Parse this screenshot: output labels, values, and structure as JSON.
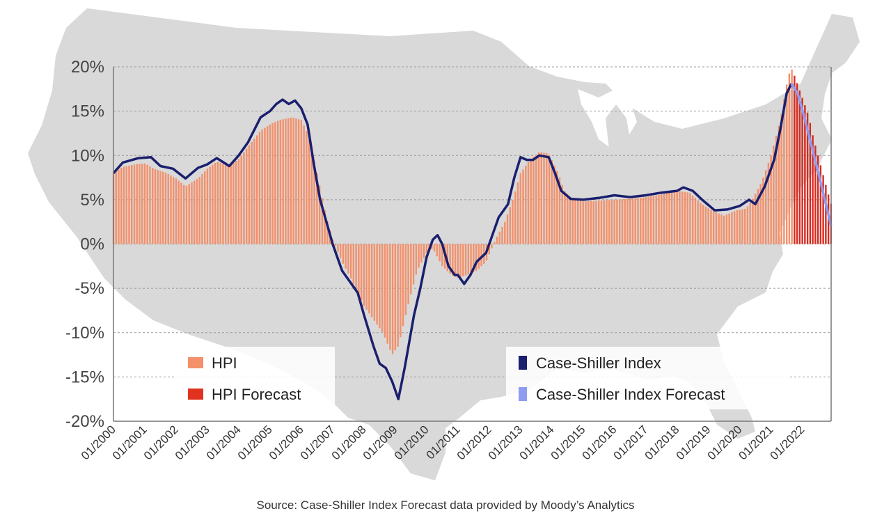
{
  "chart_data": {
    "type": "bar",
    "title": "",
    "xlabel": "",
    "ylabel": "",
    "ylim": [
      -20,
      20
    ],
    "y_ticks": [
      "-20%",
      "-15%",
      "-10%",
      "-5%",
      "0%",
      "5%",
      "10%",
      "15%",
      "20%"
    ],
    "y_tick_values": [
      -20,
      -15,
      -10,
      -5,
      0,
      5,
      10,
      15,
      20
    ],
    "x_tick_labels": [
      "01/2000",
      "01/2001",
      "01/2002",
      "01/2003",
      "01/2004",
      "01/2005",
      "01/2006",
      "01/2007",
      "01/2008",
      "01/2009",
      "01/2010",
      "01/2011",
      "01/2012",
      "01/2013",
      "01/2014",
      "01/2015",
      "01/2016",
      "01/2017",
      "01/2018",
      "01/2019",
      "01/2020",
      "01/2021",
      "01/2022"
    ],
    "x_range": [
      2000.0,
      2022.92
    ],
    "grid": true,
    "background": "us-map-silhouette",
    "source": "Source: Case-Shiller Index Forecast data provided by Moody’s Analytics",
    "colors": {
      "hpi": "#f4906a",
      "hpi_forecast": "#d62a1e",
      "case_shiller": "#1a1f6e",
      "case_shiller_forecast": "#8f9cf0",
      "map": "#d9d9d9",
      "grid": "#999999"
    },
    "legend_left": [
      {
        "name": "HPI",
        "color": "#f4906a"
      },
      {
        "name": "HPI Forecast",
        "color": "#e0321f"
      }
    ],
    "legend_right": [
      {
        "name": "Case-Shiller Index",
        "color": "#1a1f6e"
      },
      {
        "name": "Case-Shiller Index Forecast",
        "color": "#8f9cf0"
      }
    ],
    "series": [
      {
        "name": "HPI",
        "kind": "bar",
        "points": [
          [
            2000.0,
            8.0
          ],
          [
            2000.3,
            8.7
          ],
          [
            2000.7,
            9.0
          ],
          [
            2001.0,
            9.1
          ],
          [
            2001.3,
            8.5
          ],
          [
            2001.7,
            8.0
          ],
          [
            2002.0,
            7.4
          ],
          [
            2002.3,
            6.5
          ],
          [
            2002.7,
            7.4
          ],
          [
            2003.0,
            8.5
          ],
          [
            2003.3,
            9.3
          ],
          [
            2003.7,
            8.8
          ],
          [
            2004.0,
            9.6
          ],
          [
            2004.3,
            11.0
          ],
          [
            2004.7,
            12.8
          ],
          [
            2005.0,
            13.5
          ],
          [
            2005.3,
            14.0
          ],
          [
            2005.7,
            14.3
          ],
          [
            2006.0,
            14.0
          ],
          [
            2006.2,
            12.5
          ],
          [
            2006.5,
            8.0
          ],
          [
            2006.8,
            3.0
          ],
          [
            2007.0,
            0.5
          ],
          [
            2007.3,
            -2.0
          ],
          [
            2007.6,
            -4.0
          ],
          [
            2008.0,
            -7.0
          ],
          [
            2008.3,
            -8.5
          ],
          [
            2008.6,
            -10.0
          ],
          [
            2008.9,
            -12.5
          ],
          [
            2009.1,
            -11.5
          ],
          [
            2009.4,
            -7.0
          ],
          [
            2009.7,
            -3.0
          ],
          [
            2010.0,
            -1.0
          ],
          [
            2010.2,
            -0.5
          ],
          [
            2010.5,
            -2.5
          ],
          [
            2010.8,
            -3.5
          ],
          [
            2011.0,
            -3.8
          ],
          [
            2011.3,
            -3.5
          ],
          [
            2011.6,
            -3.0
          ],
          [
            2011.9,
            -2.0
          ],
          [
            2012.2,
            0.5
          ],
          [
            2012.5,
            2.5
          ],
          [
            2012.8,
            5.5
          ],
          [
            2013.0,
            8.0
          ],
          [
            2013.3,
            9.5
          ],
          [
            2013.6,
            10.4
          ],
          [
            2013.9,
            10.2
          ],
          [
            2014.2,
            8.0
          ],
          [
            2014.4,
            6.0
          ],
          [
            2014.7,
            5.0
          ],
          [
            2015.0,
            4.8
          ],
          [
            2015.5,
            4.9
          ],
          [
            2016.0,
            5.0
          ],
          [
            2016.5,
            5.1
          ],
          [
            2017.0,
            5.3
          ],
          [
            2017.5,
            5.6
          ],
          [
            2018.0,
            6.0
          ],
          [
            2018.4,
            5.8
          ],
          [
            2018.8,
            4.5
          ],
          [
            2019.1,
            3.8
          ],
          [
            2019.5,
            3.2
          ],
          [
            2019.9,
            3.8
          ],
          [
            2020.2,
            4.0
          ],
          [
            2020.4,
            5.0
          ],
          [
            2020.7,
            7.0
          ],
          [
            2021.0,
            10.0
          ],
          [
            2021.3,
            14.0
          ],
          [
            2021.5,
            18.0
          ],
          [
            2021.6,
            19.5
          ],
          [
            2021.7,
            19.8
          ]
        ]
      },
      {
        "name": "HPI Forecast",
        "kind": "bar",
        "points": [
          [
            2021.75,
            19.0
          ],
          [
            2021.9,
            17.5
          ],
          [
            2022.05,
            16.0
          ],
          [
            2022.2,
            14.5
          ],
          [
            2022.35,
            12.0
          ],
          [
            2022.5,
            10.0
          ],
          [
            2022.65,
            8.0
          ],
          [
            2022.8,
            6.0
          ],
          [
            2022.92,
            4.5
          ]
        ]
      },
      {
        "name": "Case-Shiller Index",
        "kind": "line",
        "points": [
          [
            2000.0,
            8.0
          ],
          [
            2000.3,
            9.2
          ],
          [
            2000.8,
            9.7
          ],
          [
            2001.2,
            9.8
          ],
          [
            2001.5,
            8.8
          ],
          [
            2001.9,
            8.5
          ],
          [
            2002.3,
            7.4
          ],
          [
            2002.7,
            8.6
          ],
          [
            2003.0,
            9.0
          ],
          [
            2003.3,
            9.7
          ],
          [
            2003.7,
            8.8
          ],
          [
            2004.0,
            10.0
          ],
          [
            2004.3,
            11.5
          ],
          [
            2004.7,
            14.3
          ],
          [
            2005.0,
            15.0
          ],
          [
            2005.2,
            15.8
          ],
          [
            2005.4,
            16.3
          ],
          [
            2005.6,
            15.8
          ],
          [
            2005.8,
            16.2
          ],
          [
            2006.0,
            15.3
          ],
          [
            2006.2,
            13.5
          ],
          [
            2006.4,
            9.0
          ],
          [
            2006.6,
            5.0
          ],
          [
            2006.8,
            2.5
          ],
          [
            2007.0,
            0.0
          ],
          [
            2007.3,
            -3.0
          ],
          [
            2007.6,
            -4.5
          ],
          [
            2007.8,
            -5.5
          ],
          [
            2008.0,
            -8.0
          ],
          [
            2008.3,
            -11.5
          ],
          [
            2008.5,
            -13.5
          ],
          [
            2008.7,
            -14.0
          ],
          [
            2008.9,
            -15.5
          ],
          [
            2009.1,
            -17.5
          ],
          [
            2009.3,
            -14.0
          ],
          [
            2009.6,
            -8.0
          ],
          [
            2009.8,
            -5.0
          ],
          [
            2010.0,
            -1.5
          ],
          [
            2010.2,
            0.5
          ],
          [
            2010.35,
            1.0
          ],
          [
            2010.5,
            0.0
          ],
          [
            2010.7,
            -2.5
          ],
          [
            2010.9,
            -3.5
          ],
          [
            2011.0,
            -3.5
          ],
          [
            2011.2,
            -4.5
          ],
          [
            2011.4,
            -3.5
          ],
          [
            2011.6,
            -2.0
          ],
          [
            2011.9,
            -1.0
          ],
          [
            2012.1,
            1.0
          ],
          [
            2012.3,
            3.0
          ],
          [
            2012.6,
            4.5
          ],
          [
            2012.8,
            7.5
          ],
          [
            2013.0,
            9.8
          ],
          [
            2013.2,
            9.5
          ],
          [
            2013.4,
            9.5
          ],
          [
            2013.6,
            10.0
          ],
          [
            2013.9,
            9.8
          ],
          [
            2014.1,
            8.0
          ],
          [
            2014.3,
            6.0
          ],
          [
            2014.6,
            5.1
          ],
          [
            2015.0,
            5.0
          ],
          [
            2015.5,
            5.2
          ],
          [
            2016.0,
            5.5
          ],
          [
            2016.5,
            5.3
          ],
          [
            2017.0,
            5.5
          ],
          [
            2017.5,
            5.8
          ],
          [
            2018.0,
            6.0
          ],
          [
            2018.2,
            6.4
          ],
          [
            2018.5,
            6.0
          ],
          [
            2018.8,
            5.0
          ],
          [
            2019.2,
            3.8
          ],
          [
            2019.6,
            3.9
          ],
          [
            2020.0,
            4.3
          ],
          [
            2020.3,
            5.0
          ],
          [
            2020.5,
            4.5
          ],
          [
            2020.8,
            6.5
          ],
          [
            2021.1,
            9.5
          ],
          [
            2021.3,
            13.0
          ],
          [
            2021.5,
            17.0
          ],
          [
            2021.65,
            18.1
          ]
        ]
      },
      {
        "name": "Case-Shiller Index Forecast",
        "kind": "line",
        "points": [
          [
            2021.65,
            18.1
          ],
          [
            2021.85,
            17.0
          ],
          [
            2022.05,
            14.5
          ],
          [
            2022.3,
            11.0
          ],
          [
            2022.55,
            7.5
          ],
          [
            2022.75,
            4.5
          ],
          [
            2022.92,
            2.0
          ]
        ]
      }
    ]
  }
}
